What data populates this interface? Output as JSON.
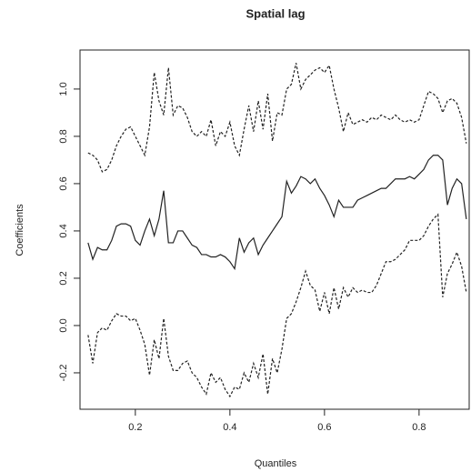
{
  "chart_data": {
    "type": "line",
    "title": "Spatial lag",
    "xlabel": "Quantiles",
    "ylabel": "Coefficients",
    "x": [
      0.1,
      0.11,
      0.12,
      0.13,
      0.14,
      0.15,
      0.16,
      0.17,
      0.18,
      0.19,
      0.2,
      0.21,
      0.22,
      0.23,
      0.24,
      0.25,
      0.26,
      0.27,
      0.28,
      0.29,
      0.3,
      0.31,
      0.32,
      0.33,
      0.34,
      0.35,
      0.36,
      0.37,
      0.38,
      0.39,
      0.4,
      0.41,
      0.42,
      0.43,
      0.44,
      0.45,
      0.46,
      0.47,
      0.48,
      0.49,
      0.5,
      0.51,
      0.52,
      0.53,
      0.54,
      0.55,
      0.56,
      0.57,
      0.58,
      0.59,
      0.6,
      0.61,
      0.62,
      0.63,
      0.64,
      0.65,
      0.66,
      0.67,
      0.68,
      0.69,
      0.7,
      0.71,
      0.72,
      0.73,
      0.74,
      0.75,
      0.76,
      0.77,
      0.78,
      0.79,
      0.8,
      0.81,
      0.82,
      0.83,
      0.84,
      0.85,
      0.86,
      0.87,
      0.88,
      0.89,
      0.9
    ],
    "series": [
      {
        "color": "#222222",
        "dash": false,
        "values": [
          0.35,
          0.28,
          0.33,
          0.32,
          0.32,
          0.36,
          0.42,
          0.43,
          0.43,
          0.42,
          0.36,
          0.34,
          0.4,
          0.45,
          0.38,
          0.45,
          0.57,
          0.35,
          0.35,
          0.4,
          0.4,
          0.37,
          0.34,
          0.33,
          0.3,
          0.3,
          0.29,
          0.29,
          0.3,
          0.29,
          0.27,
          0.24,
          0.37,
          0.31,
          0.35,
          0.37,
          0.3,
          0.34,
          0.37,
          0.4,
          0.43,
          0.46,
          0.61,
          0.56,
          0.59,
          0.63,
          0.62,
          0.6,
          0.62,
          0.58,
          0.55,
          0.51,
          0.46,
          0.53,
          0.5,
          0.5,
          0.5,
          0.53,
          0.54,
          0.55,
          0.56,
          0.57,
          0.58,
          0.58,
          0.6,
          0.62,
          0.62,
          0.62,
          0.63,
          0.62,
          0.64,
          0.66,
          0.7,
          0.72,
          0.72,
          0.7,
          0.51,
          0.58,
          0.62,
          0.6,
          0.45
        ]
      },
      {
        "color": "#222222",
        "dash": true,
        "values": [
          0.73,
          0.72,
          0.7,
          0.65,
          0.66,
          0.7,
          0.76,
          0.8,
          0.83,
          0.84,
          0.8,
          0.76,
          0.72,
          0.84,
          1.07,
          0.95,
          0.89,
          1.09,
          0.89,
          0.93,
          0.92,
          0.88,
          0.82,
          0.8,
          0.82,
          0.8,
          0.87,
          0.76,
          0.82,
          0.8,
          0.86,
          0.76,
          0.72,
          0.83,
          0.93,
          0.82,
          0.95,
          0.83,
          0.98,
          0.78,
          0.9,
          0.89,
          1.0,
          1.02,
          1.11,
          1.0,
          1.04,
          1.06,
          1.08,
          1.09,
          1.07,
          1.1,
          1.0,
          0.92,
          0.82,
          0.9,
          0.85,
          0.86,
          0.87,
          0.86,
          0.88,
          0.87,
          0.89,
          0.88,
          0.87,
          0.89,
          0.87,
          0.86,
          0.87,
          0.86,
          0.87,
          0.93,
          0.99,
          0.98,
          0.96,
          0.9,
          0.95,
          0.96,
          0.94,
          0.88,
          0.77
        ]
      },
      {
        "color": "#222222",
        "dash": true,
        "values": [
          -0.04,
          -0.16,
          -0.03,
          -0.01,
          -0.02,
          0.02,
          0.05,
          0.04,
          0.04,
          0.02,
          0.03,
          -0.02,
          -0.08,
          -0.21,
          -0.06,
          -0.14,
          0.03,
          -0.13,
          -0.19,
          -0.19,
          -0.16,
          -0.15,
          -0.2,
          -0.22,
          -0.26,
          -0.29,
          -0.2,
          -0.24,
          -0.22,
          -0.27,
          -0.3,
          -0.26,
          -0.27,
          -0.2,
          -0.24,
          -0.16,
          -0.22,
          -0.12,
          -0.29,
          -0.14,
          -0.2,
          -0.1,
          0.03,
          0.05,
          0.1,
          0.16,
          0.23,
          0.17,
          0.15,
          0.06,
          0.14,
          0.05,
          0.16,
          0.07,
          0.16,
          0.12,
          0.16,
          0.14,
          0.15,
          0.14,
          0.14,
          0.17,
          0.22,
          0.27,
          0.27,
          0.28,
          0.3,
          0.32,
          0.36,
          0.36,
          0.36,
          0.38,
          0.42,
          0.45,
          0.47,
          0.12,
          0.22,
          0.26,
          0.31,
          0.25,
          0.14
        ]
      }
    ],
    "xlim": [
      0.083,
      0.906
    ],
    "ylim": [
      -0.354,
      1.165
    ],
    "xticks": [
      0.2,
      0.4,
      0.6,
      0.8
    ],
    "yticks": [
      -0.2,
      {
        "value": 0,
        "label": "0.0"
      },
      0.2,
      0.4,
      0.6,
      0.8,
      {
        "value": 1,
        "label": "1.0"
      }
    ]
  }
}
